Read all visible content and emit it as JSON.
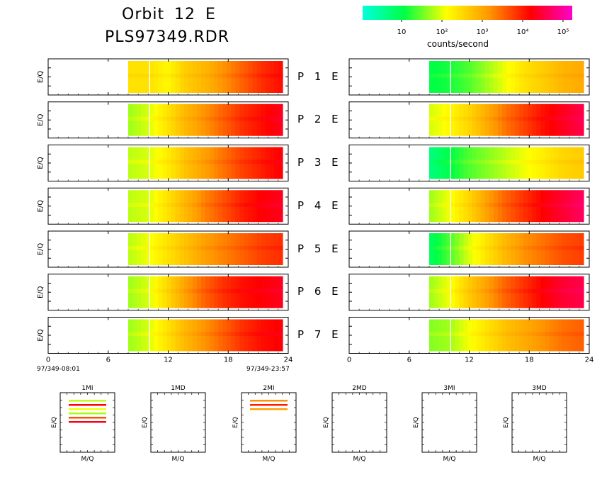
{
  "header": {
    "title_line1": "Orbit 12 E",
    "title_line2": "PLS97349.RDR"
  },
  "colorbar": {
    "tick_labels": [
      "10",
      "10²",
      "10³",
      "10⁴",
      "10⁵"
    ],
    "label": "counts/second",
    "colors": [
      "#00ffdd",
      "#00ff44",
      "#ffff00",
      "#ff9900",
      "#ff0000",
      "#ff00cc"
    ]
  },
  "chart_data": {
    "type": "heatmap",
    "xlim": [
      0,
      24
    ],
    "x_ticks": [
      0,
      6,
      12,
      18,
      24
    ],
    "x_tick_labels": [
      "0",
      "6",
      "12",
      "18",
      "24"
    ],
    "start_label": "97/349-08:01",
    "end_label": "97/349-23:57",
    "ylabel": "E/Q",
    "data_start_hour": 8,
    "panels": [
      {
        "label": "P 1 E",
        "left_levels": [
          2.6,
          2.6,
          2.4,
          2.8,
          3.0,
          3.3,
          3.6,
          3.9,
          4.1
        ],
        "right_levels": [
          1.4,
          1.5,
          1.7,
          2.0,
          2.3,
          2.6,
          2.8,
          3.0,
          3.1
        ]
      },
      {
        "label": "P 2 E",
        "left_levels": [
          2.0,
          2.2,
          2.6,
          3.0,
          3.3,
          3.6,
          3.9,
          4.1,
          4.3
        ],
        "right_levels": [
          2.2,
          2.4,
          2.7,
          3.1,
          3.5,
          3.8,
          4.1,
          4.3,
          4.5
        ]
      },
      {
        "label": "P 3 E",
        "left_levels": [
          2.1,
          2.2,
          2.5,
          2.9,
          3.2,
          3.5,
          3.8,
          4.0,
          4.2
        ],
        "right_levels": [
          1.1,
          1.4,
          1.7,
          1.9,
          2.1,
          2.3,
          2.5,
          2.7,
          2.8
        ]
      },
      {
        "label": "P 4 E",
        "left_levels": [
          2.1,
          2.2,
          2.6,
          3.0,
          3.4,
          3.7,
          4.0,
          4.2,
          4.3
        ],
        "right_levels": [
          2.0,
          2.3,
          2.7,
          3.2,
          3.6,
          3.9,
          4.2,
          4.4,
          4.6
        ]
      },
      {
        "label": "P 5 E",
        "left_levels": [
          2.1,
          2.3,
          2.6,
          2.9,
          3.2,
          3.4,
          3.6,
          3.8,
          3.9
        ],
        "right_levels": [
          1.3,
          1.7,
          2.2,
          2.6,
          3.0,
          3.3,
          3.5,
          3.7,
          3.8
        ]
      },
      {
        "label": "P 6 E",
        "left_levels": [
          2.0,
          2.2,
          2.7,
          3.2,
          3.6,
          3.9,
          4.1,
          4.2,
          4.3
        ],
        "right_levels": [
          2.0,
          2.3,
          2.8,
          3.2,
          3.6,
          3.9,
          4.2,
          4.4,
          4.5
        ]
      },
      {
        "label": "P 7 E",
        "left_levels": [
          2.0,
          2.2,
          2.6,
          3.0,
          3.3,
          3.6,
          3.9,
          4.1,
          4.2
        ],
        "right_levels": [
          1.9,
          2.0,
          2.3,
          2.6,
          2.9,
          3.1,
          3.3,
          3.5,
          3.6
        ]
      }
    ],
    "bottom_panels": [
      {
        "title": "1MI",
        "xlabel": "M/Q",
        "ylabel": "E/Q",
        "bars": [
          {
            "level": 2.1
          },
          {
            "level": 4.2
          },
          {
            "level": 2.3
          },
          {
            "level": 2.0
          },
          {
            "level": 3.7
          },
          {
            "level": 4.3
          }
        ]
      },
      {
        "title": "1MD",
        "xlabel": "M/Q",
        "ylabel": "E/Q",
        "bars": []
      },
      {
        "title": "2MI",
        "xlabel": "M/Q",
        "ylabel": "E/Q",
        "bars": [
          {
            "level": 3.3
          },
          {
            "level": 4.0
          },
          {
            "level": 3.2
          }
        ]
      },
      {
        "title": "2MD",
        "xlabel": "M/Q",
        "ylabel": "E/Q",
        "bars": []
      },
      {
        "title": "3MI",
        "xlabel": "M/Q",
        "ylabel": "E/Q",
        "bars": []
      },
      {
        "title": "3MD",
        "xlabel": "M/Q",
        "ylabel": "E/Q",
        "bars": []
      }
    ]
  }
}
